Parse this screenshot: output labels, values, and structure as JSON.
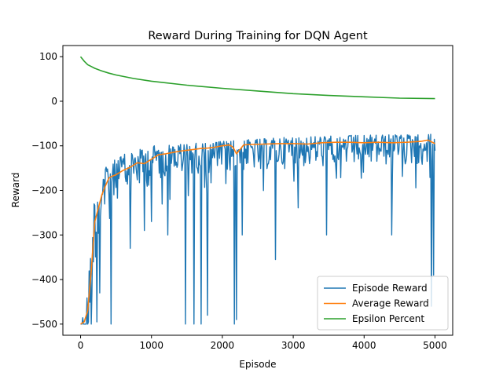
{
  "chart_data": {
    "type": "line",
    "title": "Reward During Training for DQN Agent",
    "xlabel": "Episode",
    "ylabel": "Reward",
    "xlim": [
      -250,
      5250
    ],
    "ylim": [
      -525,
      125
    ],
    "xticks": [
      0,
      1000,
      2000,
      3000,
      4000,
      5000
    ],
    "xtick_labels": [
      "0",
      "1000",
      "2000",
      "3000",
      "4000",
      "5000"
    ],
    "yticks": [
      100,
      0,
      -100,
      -200,
      -300,
      -400,
      -500
    ],
    "ytick_labels": [
      "100",
      "0",
      "−100",
      "−200",
      "−300",
      "−400",
      "−500"
    ],
    "grid": false,
    "legend_position": "lower-right",
    "series": [
      {
        "name": "Episode Reward",
        "color": "#1f77b4",
        "style": "noisy",
        "envelope_x": [
          0,
          100,
          200,
          300,
          400,
          600,
          800,
          1000,
          1500,
          2000,
          2500,
          3000,
          3500,
          4000,
          4500,
          5000
        ],
        "envelope_y": [
          -500,
          -420,
          -200,
          -160,
          -140,
          -120,
          -110,
          -100,
          -95,
          -90,
          -85,
          -80,
          -78,
          -76,
          -75,
          -74
        ],
        "dips_x": [
          60,
          110,
          150,
          230,
          270,
          430,
          700,
          900,
          1000,
          1230,
          1480,
          1600,
          1700,
          1790,
          2170,
          2200,
          2280,
          2750,
          3470,
          4390,
          4950,
          4980
        ],
        "dips_y": [
          -500,
          -495,
          -500,
          -495,
          -430,
          -500,
          -330,
          -290,
          -270,
          -300,
          -500,
          -500,
          -500,
          -480,
          -500,
          -490,
          -300,
          -355,
          -300,
          -300,
          -460,
          -390
        ]
      },
      {
        "name": "Average Reward",
        "color": "#ff7f0e",
        "x": [
          0,
          50,
          100,
          150,
          200,
          250,
          300,
          350,
          400,
          450,
          500,
          600,
          700,
          800,
          900,
          1000,
          1100,
          1200,
          1300,
          1400,
          1500,
          1600,
          1700,
          1800,
          1900,
          2000,
          2100,
          2150,
          2200,
          2250,
          2300,
          2400,
          2600,
          2800,
          3000,
          3200,
          3400,
          3600,
          3800,
          4000,
          4200,
          4400,
          4600,
          4800,
          4900,
          5000
        ],
        "y": [
          -500,
          -495,
          -470,
          -380,
          -270,
          -240,
          -210,
          -190,
          -172,
          -168,
          -165,
          -155,
          -148,
          -138,
          -140,
          -130,
          -120,
          -118,
          -115,
          -112,
          -110,
          -108,
          -106,
          -105,
          -103,
          -100,
          -98,
          -103,
          -118,
          -108,
          -98,
          -97,
          -96,
          -95,
          -95,
          -96,
          -93,
          -92,
          -92,
          -93,
          -92,
          -93,
          -92,
          -90,
          -87,
          -95
        ]
      },
      {
        "name": "Epsilon Percent",
        "color": "#2ca02c",
        "x": [
          0,
          25,
          50,
          100,
          150,
          200,
          300,
          400,
          500,
          750,
          1000,
          1500,
          2000,
          2500,
          3000,
          3500,
          4000,
          4500,
          5000
        ],
        "y": [
          100,
          95,
          90,
          82,
          78,
          74,
          68,
          63,
          59,
          51,
          45,
          36,
          29,
          23,
          17,
          13,
          10,
          7,
          6
        ]
      }
    ]
  }
}
